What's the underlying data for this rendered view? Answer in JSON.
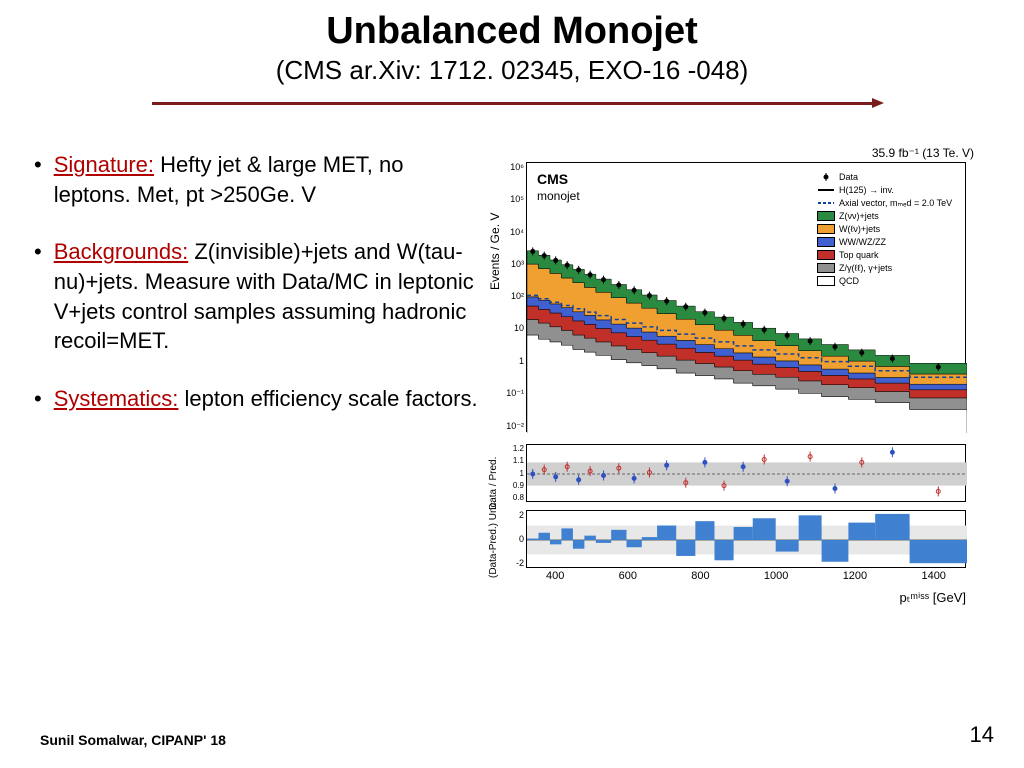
{
  "title": "Unbalanced Monojet",
  "subtitle": "(CMS ar.Xiv: 1712. 02345, EXO-16 -048)",
  "bullets": [
    {
      "label": "Signature:",
      "text": " Hefty jet & large MET, no leptons. Met, pt >250Ge. V"
    },
    {
      "label": "Backgrounds:",
      "text": " Z(invisible)+jets and W(tau-nu)+jets. Measure with Data/MC in leptonic V+jets control samples assuming hadronic recoil=MET."
    },
    {
      "label": "Systematics:",
      "text": " lepton efficiency scale factors."
    }
  ],
  "chart": {
    "lumi": "35.9 fb⁻¹ (13 Te. V)",
    "ylabel_main": "Events / Ge. V",
    "ylabel_ratio": "Data / Pred.",
    "ylabel_pull": "(Data-Pred.)\nUnc.",
    "xlabel": "pₜᵐⁱˢˢ [GeV]",
    "cms": "CMS",
    "region": "monojet",
    "xlim": [
      250,
      1400
    ],
    "xticks": [
      "400",
      "600",
      "800",
      "1000",
      "1200",
      "1400"
    ],
    "ylim_main": [
      0.01,
      1000000
    ],
    "yticks_main": [
      "10⁶",
      "10⁵",
      "10⁴",
      "10³",
      "10²",
      "10",
      "1",
      "10⁻¹",
      "10⁻²"
    ],
    "ylim_ratio": [
      0.8,
      1.2
    ],
    "yticks_ratio": [
      "1.2",
      "1.1",
      "1",
      "0.9",
      "0.8"
    ],
    "ylim_pull": [
      -2,
      2
    ],
    "yticks_pull": [
      "2",
      "0",
      "-2"
    ],
    "legend": [
      {
        "label": "Data",
        "type": "marker",
        "color": "#000000"
      },
      {
        "label": "H(125) → inv.",
        "type": "line",
        "color": "#000000"
      },
      {
        "label": "Axial vector, mₘₑd = 2.0 TeV",
        "type": "dash",
        "color": "#1040a0"
      },
      {
        "label": "Z(νν)+jets",
        "type": "fill",
        "color": "#2a8a3f"
      },
      {
        "label": "W(ℓν)+jets",
        "type": "fill",
        "color": "#f0a030"
      },
      {
        "label": "WW/WZ/ZZ",
        "type": "fill",
        "color": "#4060d0"
      },
      {
        "label": "Top quark",
        "type": "fill",
        "color": "#c03028"
      },
      {
        "label": "Z/γ(ℓℓ), γ+jets",
        "type": "fill",
        "color": "#909090"
      },
      {
        "label": "QCD",
        "type": "fill",
        "color": "#ffffff"
      }
    ],
    "stacked_histogram": {
      "bin_edges": [
        250,
        280,
        310,
        340,
        370,
        400,
        430,
        470,
        510,
        550,
        590,
        640,
        690,
        740,
        790,
        840,
        900,
        960,
        1020,
        1090,
        1160,
        1250,
        1400
      ],
      "series": [
        {
          "name": "QCD",
          "color": "#ffffff",
          "values": [
            8,
            6,
            5,
            4,
            3,
            2.5,
            2,
            1.5,
            1.2,
            1,
            0.8,
            0.6,
            0.5,
            0.4,
            0.3,
            0.25,
            0.2,
            0.15,
            0.12,
            0.1,
            0.08,
            0.05
          ]
        },
        {
          "name": "Z/γ(ℓℓ), γ+jets",
          "color": "#909090",
          "values": [
            15,
            12,
            9,
            7,
            5,
            4,
            3,
            2.3,
            1.8,
            1.4,
            1.1,
            0.85,
            0.65,
            0.5,
            0.4,
            0.3,
            0.25,
            0.2,
            0.15,
            0.12,
            0.09,
            0.06
          ]
        },
        {
          "name": "Top quark",
          "color": "#c03028",
          "values": [
            35,
            28,
            22,
            17,
            13,
            10,
            7.5,
            5.5,
            4.2,
            3.2,
            2.4,
            1.8,
            1.3,
            1.0,
            0.75,
            0.55,
            0.42,
            0.32,
            0.24,
            0.18,
            0.13,
            0.08
          ]
        },
        {
          "name": "WW/WZ/ZZ",
          "color": "#4060d0",
          "values": [
            50,
            40,
            31,
            24,
            18,
            14,
            10,
            7.5,
            5.6,
            4.2,
            3.1,
            2.3,
            1.7,
            1.25,
            0.92,
            0.68,
            0.5,
            0.37,
            0.27,
            0.2,
            0.14,
            0.09
          ]
        },
        {
          "name": "W(ℓν)+jets",
          "color": "#f0a030",
          "values": [
            900,
            650,
            470,
            340,
            245,
            175,
            125,
            85,
            58,
            40,
            27,
            18,
            12,
            8,
            5.5,
            3.7,
            2.5,
            1.7,
            1.1,
            0.75,
            0.5,
            0.28
          ]
        },
        {
          "name": "Z(νν)+jets",
          "color": "#2a8a3f",
          "values": [
            1500,
            1100,
            800,
            580,
            420,
            300,
            215,
            150,
            105,
            73,
            50,
            34,
            23,
            16,
            11,
            7.3,
            5,
            3.4,
            2.3,
            1.55,
            1.05,
            0.6
          ]
        }
      ],
      "data_points": [
        2400,
        1800,
        1300,
        940,
        680,
        490,
        350,
        243,
        170,
        118,
        81,
        55,
        37,
        25,
        17,
        11.5,
        7.8,
        5.3,
        3.6,
        2.4,
        1.6,
        0.9
      ],
      "signal_axial": [
        120,
        95,
        75,
        60,
        48,
        38,
        30,
        23,
        18,
        14,
        11,
        8.5,
        6.5,
        5,
        3.8,
        2.9,
        2.2,
        1.7,
        1.3,
        0.95,
        0.7,
        0.45
      ]
    },
    "ratio_points": [
      1.0,
      1.03,
      0.98,
      1.05,
      0.96,
      1.02,
      0.99,
      1.04,
      0.97,
      1.01,
      1.06,
      0.94,
      1.08,
      0.92,
      1.05,
      1.1,
      0.95,
      1.12,
      0.9,
      1.08,
      1.15,
      0.88
    ],
    "pull_bars": [
      0.1,
      0.5,
      -0.3,
      0.8,
      -0.6,
      0.3,
      -0.2,
      0.7,
      -0.5,
      0.2,
      1.0,
      -1.1,
      1.3,
      -1.4,
      0.9,
      1.5,
      -0.8,
      1.7,
      -1.5,
      1.2,
      1.8,
      -1.6
    ],
    "colors": {
      "accent": "#b00000",
      "divider": "#7a1c1c",
      "ratio_band": "#d0d0d0",
      "pull_fill": "#4080d0"
    }
  },
  "footer": {
    "left": "Sunil Somalwar, CIPANP' 18",
    "page": "14"
  }
}
